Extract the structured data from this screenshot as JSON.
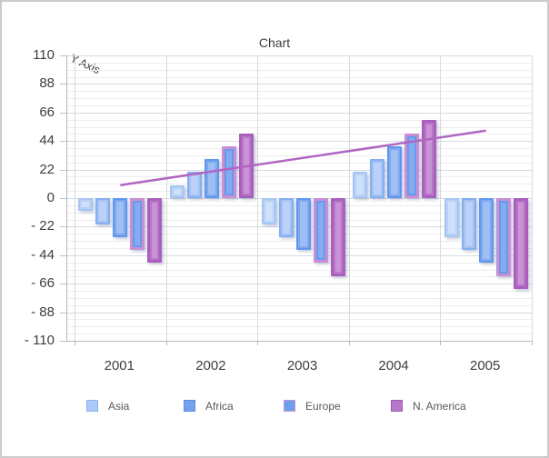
{
  "title": "Chart",
  "y_axis": {
    "title": "Y Axis",
    "min": -110,
    "max": 110,
    "major_step": 22,
    "minor_step": 5.5,
    "tick_labels": [
      "110",
      "88",
      "66",
      "44",
      "22",
      "0",
      "- 22",
      "- 44",
      "- 66",
      "- 88",
      "- 110"
    ]
  },
  "x_axis": {
    "categories": [
      "2001",
      "2002",
      "2003",
      "2004",
      "2005"
    ]
  },
  "legend": {
    "items": [
      {
        "label": "Asia",
        "fill": "#aac9f4",
        "border": "#8ab1ef"
      },
      {
        "label": "Africa",
        "fill": "#74a3ee",
        "border": "#5b8ce0"
      },
      {
        "label": "Europe",
        "fill": "#6d9eeb",
        "border": "#c98fd4"
      },
      {
        "label": "N. America",
        "fill": "#b678c8",
        "border": "#9b59b0"
      }
    ],
    "item_lefts": [
      93,
      200,
      310,
      428
    ]
  },
  "chart_data": {
    "type": "bar",
    "title": "Chart",
    "ylabel": "Y Axis",
    "ylim": [
      -110,
      110
    ],
    "grid": true,
    "legend_position": "bottom",
    "categories": [
      "2001",
      "2002",
      "2003",
      "2004",
      "2005"
    ],
    "series": [
      {
        "name": "Asia",
        "values": [
          -10,
          10,
          -20,
          20,
          -30
        ],
        "border": "#a5c6f3",
        "ring": "#b9d2f7",
        "fill": "#cfe0fa",
        "border_width": 2
      },
      {
        "name": "Africa",
        "values": [
          -20,
          20,
          -30,
          30,
          -40
        ],
        "border": "#84aff0",
        "ring": "#a3c1f5",
        "fill": "#bcd1f8",
        "border_width": 2
      },
      {
        "name": "",
        "values": [
          -30,
          30,
          -40,
          40,
          -50
        ],
        "border": "#5f97ee",
        "ring": "#7fa8f0",
        "fill": "#9fbef4",
        "border_width": 2
      },
      {
        "name": "Europe",
        "values": [
          -40,
          40,
          -50,
          50,
          -60
        ],
        "border": "#c98fd4",
        "ring": "#679aea",
        "fill": "#84abf0",
        "border_width": 3
      },
      {
        "name": "N. America",
        "values": [
          -50,
          50,
          -60,
          60,
          -70
        ],
        "border": "#a95fbc",
        "ring": "#b976c8",
        "fill": "#ca93d5",
        "border_width": 3
      }
    ],
    "trendline": {
      "type": "line",
      "color": "#b066c2",
      "points": [
        {
          "x": "2001",
          "y": 10
        },
        {
          "x": "2005",
          "y": 52
        }
      ]
    }
  }
}
